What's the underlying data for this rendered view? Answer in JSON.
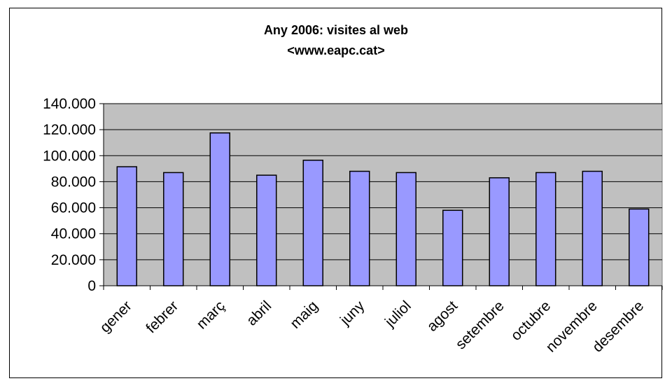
{
  "chart_data": {
    "type": "bar",
    "title": "Any 2006: visites al web",
    "subtitle": "<www.eapc.cat>",
    "categories": [
      "gener",
      "febrer",
      "març",
      "abril",
      "maig",
      "juny",
      "juliol",
      "agost",
      "setembre",
      "octubre",
      "novembre",
      "desembre"
    ],
    "values": [
      91500,
      87000,
      117500,
      85000,
      96500,
      88000,
      87000,
      58000,
      83000,
      87000,
      88000,
      59000
    ],
    "ylim": [
      0,
      140000
    ],
    "yticks": [
      0,
      20000,
      40000,
      60000,
      80000,
      100000,
      120000,
      140000
    ],
    "ytick_labels": [
      "0",
      "20.000",
      "40.000",
      "60.000",
      "80.000",
      "100.000",
      "120.000",
      "140.000"
    ],
    "grid": true,
    "colors": {
      "bar": "#9999ff",
      "plot_bg": "#c0c0c0",
      "grid": "#000000"
    }
  }
}
